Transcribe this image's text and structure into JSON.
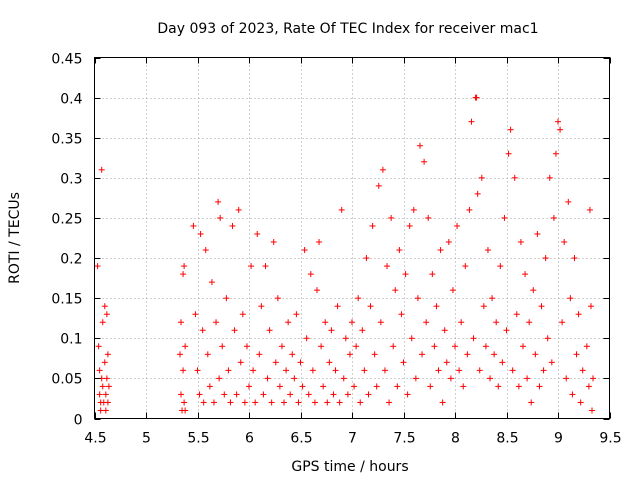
{
  "chart_data": {
    "type": "scatter",
    "title": "Day 093 of 2023, Rate Of TEC Index for receiver mac1",
    "xlabel": "GPS time / hours",
    "ylabel": "ROTI / TECUs",
    "xlim": [
      4.5,
      9.5
    ],
    "ylim": [
      0,
      0.45
    ],
    "xticks": [
      "4.5",
      "5",
      "5.5",
      "6",
      "6.5",
      "7",
      "7.5",
      "8",
      "8.5",
      "9",
      "9.5"
    ],
    "xtick_values": [
      4.5,
      5,
      5.5,
      6,
      6.5,
      7,
      7.5,
      8,
      8.5,
      9,
      9.5
    ],
    "yticks": [
      "0",
      "0.05",
      "0.1",
      "0.15",
      "0.2",
      "0.25",
      "0.3",
      "0.35",
      "0.4",
      "0.45"
    ],
    "ytick_values": [
      0,
      0.05,
      0.1,
      0.15,
      0.2,
      0.25,
      0.3,
      0.35,
      0.4,
      0.45
    ],
    "grid": true,
    "marker": "+",
    "color": "#ff0000",
    "series": [
      {
        "points": [
          [
            4.53,
            0.19
          ],
          [
            4.54,
            0.09
          ],
          [
            4.55,
            0.06
          ],
          [
            4.55,
            0.03
          ],
          [
            4.56,
            0.02
          ],
          [
            4.56,
            0.01
          ],
          [
            4.57,
            0.05
          ],
          [
            4.57,
            0.31
          ],
          [
            4.58,
            0.12
          ],
          [
            4.58,
            0.04
          ],
          [
            4.59,
            0.02
          ],
          [
            4.6,
            0.14
          ],
          [
            4.6,
            0.07
          ],
          [
            4.61,
            0.03
          ],
          [
            4.61,
            0.01
          ],
          [
            4.62,
            0.13
          ],
          [
            4.62,
            0.05
          ],
          [
            4.63,
            0.02
          ],
          [
            4.63,
            0.08
          ],
          [
            4.64,
            0.04
          ],
          [
            5.33,
            0.08
          ],
          [
            5.34,
            0.12
          ],
          [
            5.34,
            0.03
          ],
          [
            5.35,
            0.01
          ],
          [
            5.36,
            0.18
          ],
          [
            5.36,
            0.06
          ],
          [
            5.37,
            0.02
          ],
          [
            5.37,
            0.19
          ],
          [
            5.38,
            0.09
          ],
          [
            5.38,
            0.01
          ],
          [
            5.46,
            0.24
          ],
          [
            5.48,
            0.13
          ],
          [
            5.5,
            0.06
          ],
          [
            5.52,
            0.03
          ],
          [
            5.53,
            0.23
          ],
          [
            5.55,
            0.11
          ],
          [
            5.56,
            0.02
          ],
          [
            5.58,
            0.21
          ],
          [
            5.6,
            0.08
          ],
          [
            5.62,
            0.04
          ],
          [
            5.64,
            0.17
          ],
          [
            5.66,
            0.02
          ],
          [
            5.68,
            0.12
          ],
          [
            5.7,
            0.27
          ],
          [
            5.71,
            0.05
          ],
          [
            5.72,
            0.25
          ],
          [
            5.74,
            0.09
          ],
          [
            5.76,
            0.03
          ],
          [
            5.78,
            0.15
          ],
          [
            5.8,
            0.06
          ],
          [
            5.82,
            0.02
          ],
          [
            5.84,
            0.24
          ],
          [
            5.86,
            0.11
          ],
          [
            5.88,
            0.03
          ],
          [
            5.9,
            0.26
          ],
          [
            5.92,
            0.07
          ],
          [
            5.94,
            0.13
          ],
          [
            5.96,
            0.02
          ],
          [
            5.98,
            0.09
          ],
          [
            6.0,
            0.04
          ],
          [
            6.02,
            0.19
          ],
          [
            6.04,
            0.06
          ],
          [
            6.06,
            0.02
          ],
          [
            6.08,
            0.23
          ],
          [
            6.1,
            0.08
          ],
          [
            6.12,
            0.14
          ],
          [
            6.14,
            0.03
          ],
          [
            6.16,
            0.19
          ],
          [
            6.18,
            0.05
          ],
          [
            6.2,
            0.11
          ],
          [
            6.22,
            0.02
          ],
          [
            6.24,
            0.22
          ],
          [
            6.26,
            0.07
          ],
          [
            6.28,
            0.15
          ],
          [
            6.3,
            0.04
          ],
          [
            6.32,
            0.09
          ],
          [
            6.34,
            0.02
          ],
          [
            6.36,
            0.06
          ],
          [
            6.38,
            0.12
          ],
          [
            6.4,
            0.03
          ],
          [
            6.42,
            0.08
          ],
          [
            6.44,
            0.05
          ],
          [
            6.46,
            0.13
          ],
          [
            6.48,
            0.02
          ],
          [
            6.5,
            0.07
          ],
          [
            6.52,
            0.04
          ],
          [
            6.54,
            0.21
          ],
          [
            6.56,
            0.1
          ],
          [
            6.58,
            0.03
          ],
          [
            6.6,
            0.18
          ],
          [
            6.62,
            0.06
          ],
          [
            6.64,
            0.02
          ],
          [
            6.66,
            0.16
          ],
          [
            6.68,
            0.22
          ],
          [
            6.7,
            0.09
          ],
          [
            6.72,
            0.04
          ],
          [
            6.74,
            0.12
          ],
          [
            6.76,
            0.02
          ],
          [
            6.78,
            0.07
          ],
          [
            6.8,
            0.11
          ],
          [
            6.82,
            0.03
          ],
          [
            6.84,
            0.06
          ],
          [
            6.86,
            0.14
          ],
          [
            6.88,
            0.02
          ],
          [
            6.9,
            0.26
          ],
          [
            6.92,
            0.05
          ],
          [
            6.94,
            0.1
          ],
          [
            6.96,
            0.03
          ],
          [
            6.98,
            0.08
          ],
          [
            7.0,
            0.12
          ],
          [
            7.02,
            0.04
          ],
          [
            7.04,
            0.09
          ],
          [
            7.06,
            0.15
          ],
          [
            7.08,
            0.02
          ],
          [
            7.1,
            0.11
          ],
          [
            7.12,
            0.06
          ],
          [
            7.14,
            0.2
          ],
          [
            7.16,
            0.03
          ],
          [
            7.18,
            0.14
          ],
          [
            7.2,
            0.24
          ],
          [
            7.22,
            0.08
          ],
          [
            7.24,
            0.04
          ],
          [
            7.26,
            0.29
          ],
          [
            7.28,
            0.12
          ],
          [
            7.3,
            0.31
          ],
          [
            7.32,
            0.06
          ],
          [
            7.34,
            0.19
          ],
          [
            7.36,
            0.02
          ],
          [
            7.38,
            0.25
          ],
          [
            7.4,
            0.09
          ],
          [
            7.42,
            0.16
          ],
          [
            7.44,
            0.04
          ],
          [
            7.46,
            0.21
          ],
          [
            7.48,
            0.13
          ],
          [
            7.5,
            0.07
          ],
          [
            7.52,
            0.18
          ],
          [
            7.54,
            0.03
          ],
          [
            7.56,
            0.24
          ],
          [
            7.58,
            0.1
          ],
          [
            7.6,
            0.26
          ],
          [
            7.62,
            0.05
          ],
          [
            7.64,
            0.15
          ],
          [
            7.66,
            0.34
          ],
          [
            7.68,
            0.08
          ],
          [
            7.7,
            0.32
          ],
          [
            7.72,
            0.12
          ],
          [
            7.74,
            0.25
          ],
          [
            7.76,
            0.04
          ],
          [
            7.78,
            0.18
          ],
          [
            7.8,
            0.09
          ],
          [
            7.82,
            0.14
          ],
          [
            7.84,
            0.06
          ],
          [
            7.86,
            0.21
          ],
          [
            7.88,
            0.02
          ],
          [
            7.9,
            0.11
          ],
          [
            7.92,
            0.07
          ],
          [
            7.94,
            0.22
          ],
          [
            7.96,
            0.05
          ],
          [
            7.98,
            0.16
          ],
          [
            8.0,
            0.09
          ],
          [
            8.02,
            0.24
          ],
          [
            8.04,
            0.06
          ],
          [
            8.06,
            0.12
          ],
          [
            8.08,
            0.04
          ],
          [
            8.1,
            0.19
          ],
          [
            8.12,
            0.08
          ],
          [
            8.14,
            0.26
          ],
          [
            8.16,
            0.37
          ],
          [
            8.18,
            0.1
          ],
          [
            8.2,
            0.4
          ],
          [
            8.21,
            0.4
          ],
          [
            8.22,
            0.28
          ],
          [
            8.24,
            0.06
          ],
          [
            8.26,
            0.3
          ],
          [
            8.28,
            0.14
          ],
          [
            8.3,
            0.09
          ],
          [
            8.32,
            0.21
          ],
          [
            8.34,
            0.05
          ],
          [
            8.36,
            0.15
          ],
          [
            8.38,
            0.08
          ],
          [
            8.4,
            0.12
          ],
          [
            8.42,
            0.04
          ],
          [
            8.44,
            0.19
          ],
          [
            8.46,
            0.07
          ],
          [
            8.48,
            0.25
          ],
          [
            8.5,
            0.11
          ],
          [
            8.52,
            0.33
          ],
          [
            8.54,
            0.36
          ],
          [
            8.56,
            0.06
          ],
          [
            8.58,
            0.3
          ],
          [
            8.6,
            0.13
          ],
          [
            8.62,
            0.04
          ],
          [
            8.64,
            0.22
          ],
          [
            8.66,
            0.09
          ],
          [
            8.68,
            0.18
          ],
          [
            8.7,
            0.05
          ],
          [
            8.72,
            0.12
          ],
          [
            8.74,
            0.02
          ],
          [
            8.76,
            0.16
          ],
          [
            8.78,
            0.08
          ],
          [
            8.8,
            0.23
          ],
          [
            8.82,
            0.04
          ],
          [
            8.84,
            0.14
          ],
          [
            8.86,
            0.06
          ],
          [
            8.88,
            0.2
          ],
          [
            8.9,
            0.1
          ],
          [
            8.92,
            0.3
          ],
          [
            8.94,
            0.07
          ],
          [
            8.96,
            0.25
          ],
          [
            8.98,
            0.33
          ],
          [
            9.0,
            0.37
          ],
          [
            9.02,
            0.36
          ],
          [
            9.04,
            0.12
          ],
          [
            9.06,
            0.22
          ],
          [
            9.08,
            0.05
          ],
          [
            9.1,
            0.27
          ],
          [
            9.12,
            0.15
          ],
          [
            9.14,
            0.03
          ],
          [
            9.16,
            0.2
          ],
          [
            9.18,
            0.08
          ],
          [
            9.2,
            0.13
          ],
          [
            9.22,
            0.02
          ],
          [
            9.24,
            0.06
          ],
          [
            9.28,
            0.09
          ],
          [
            9.3,
            0.04
          ],
          [
            9.31,
            0.26
          ],
          [
            9.32,
            0.14
          ],
          [
            9.33,
            0.01
          ],
          [
            9.34,
            0.05
          ]
        ]
      }
    ]
  }
}
